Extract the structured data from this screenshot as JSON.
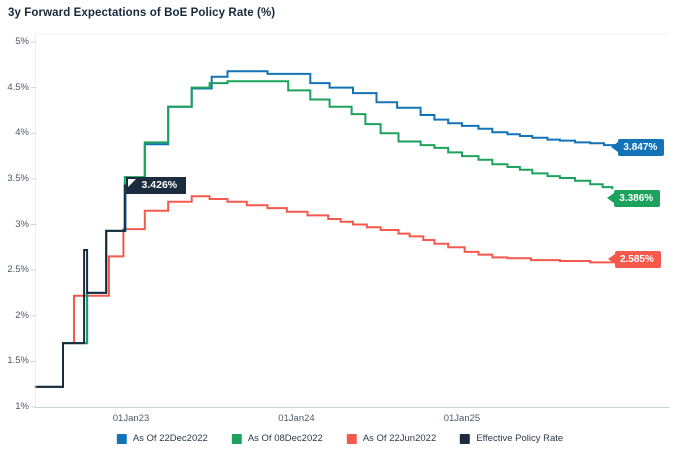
{
  "title": "3y Forward Expectations of BoE Policy Rate (%)",
  "colors": {
    "background": "#ffffff",
    "axis_line": "#c6d3df",
    "axis_line_light": "#e9eef4",
    "top_border": "#eef2f6",
    "axis_text": "#4c5866",
    "title_text": "#17293a"
  },
  "chart_data": {
    "type": "line",
    "step": "after",
    "grid": "off",
    "legend_position": "bottom",
    "axes": {
      "y": {
        "min": 1,
        "max": 5,
        "tick_step": 0.5,
        "ticks": [
          {
            "v": 5,
            "label": "5%"
          },
          {
            "v": 4.5,
            "label": "4.5%"
          },
          {
            "v": 4,
            "label": "4%"
          },
          {
            "v": 3.5,
            "label": "3.5%"
          },
          {
            "v": 3,
            "label": "3%"
          },
          {
            "v": 2.5,
            "label": "2.5%"
          },
          {
            "v": 2,
            "label": "2%"
          },
          {
            "v": 1.5,
            "label": "1.5%"
          },
          {
            "v": 1,
            "label": "1%"
          }
        ]
      },
      "x": {
        "unit": "months relative to 01Jan23",
        "range": [
          -7,
          36
        ],
        "ticks": [
          {
            "m": 0,
            "label": "01Jan23"
          },
          {
            "m": 12,
            "label": "01Jan24"
          },
          {
            "m": 24,
            "label": "01Jan25"
          }
        ]
      }
    },
    "series": [
      {
        "name": "As Of 22Dec2022",
        "color": "#1373b7",
        "end_label": "3.847%",
        "label_style": "tag",
        "points": [
          [
            -6.9,
            1.22
          ],
          [
            -4.93,
            1.7
          ],
          [
            -3.18,
            2.25
          ],
          [
            -1.8,
            2.93
          ],
          [
            -0.4,
            3.43
          ],
          [
            1.0,
            3.88
          ],
          [
            2.7,
            4.29
          ],
          [
            4.4,
            4.49
          ],
          [
            5.85,
            4.62
          ],
          [
            7.0,
            4.68
          ],
          [
            9.9,
            4.65
          ],
          [
            13.0,
            4.55
          ],
          [
            14.4,
            4.5
          ],
          [
            16.1,
            4.44
          ],
          [
            17.8,
            4.34
          ],
          [
            19.3,
            4.28
          ],
          [
            21.0,
            4.2
          ],
          [
            22.0,
            4.15
          ],
          [
            23.0,
            4.11
          ],
          [
            24.0,
            4.08
          ],
          [
            25.2,
            4.05
          ],
          [
            26.2,
            4.01
          ],
          [
            27.3,
            3.99
          ],
          [
            28.2,
            3.97
          ],
          [
            29.1,
            3.95
          ],
          [
            30.2,
            3.93
          ],
          [
            31.1,
            3.92
          ],
          [
            32.2,
            3.9
          ],
          [
            33.3,
            3.89
          ],
          [
            34.3,
            3.87
          ],
          [
            35.2,
            3.847
          ]
        ]
      },
      {
        "name": "As Of 08Dec2022",
        "color": "#1ca25d",
        "end_label": "3.386%",
        "label_style": "tag",
        "points": [
          [
            -6.9,
            1.22
          ],
          [
            -4.93,
            1.7
          ],
          [
            -3.18,
            2.25
          ],
          [
            -1.8,
            2.93
          ],
          [
            -0.45,
            3.52
          ],
          [
            1.0,
            3.9
          ],
          [
            2.7,
            4.29
          ],
          [
            4.4,
            4.5
          ],
          [
            5.7,
            4.55
          ],
          [
            7.0,
            4.57
          ],
          [
            11.4,
            4.47
          ],
          [
            13.0,
            4.37
          ],
          [
            14.4,
            4.29
          ],
          [
            16.0,
            4.21
          ],
          [
            17.0,
            4.1
          ],
          [
            18.1,
            4.0
          ],
          [
            19.4,
            3.91
          ],
          [
            21.0,
            3.87
          ],
          [
            22.0,
            3.84
          ],
          [
            23.0,
            3.79
          ],
          [
            24.0,
            3.75
          ],
          [
            25.2,
            3.71
          ],
          [
            26.2,
            3.66
          ],
          [
            27.3,
            3.63
          ],
          [
            28.2,
            3.6
          ],
          [
            29.1,
            3.56
          ],
          [
            30.2,
            3.53
          ],
          [
            31.1,
            3.51
          ],
          [
            32.2,
            3.48
          ],
          [
            33.3,
            3.44
          ],
          [
            34.2,
            3.41
          ],
          [
            34.9,
            3.386
          ]
        ]
      },
      {
        "name": "As Of 22Jun2022",
        "color": "#f4594c",
        "end_label": "2.585%",
        "label_style": "tag",
        "points": [
          [
            -6.98,
            1.22
          ],
          [
            -4.93,
            1.7
          ],
          [
            -4.13,
            2.22
          ],
          [
            -1.6,
            2.65
          ],
          [
            -0.55,
            2.95
          ],
          [
            1.0,
            3.15
          ],
          [
            2.7,
            3.25
          ],
          [
            4.4,
            3.31
          ],
          [
            5.7,
            3.28
          ],
          [
            7.0,
            3.25
          ],
          [
            8.4,
            3.21
          ],
          [
            9.9,
            3.18
          ],
          [
            11.3,
            3.14
          ],
          [
            12.8,
            3.1
          ],
          [
            14.3,
            3.06
          ],
          [
            15.2,
            3.03
          ],
          [
            16.1,
            3.0
          ],
          [
            17.1,
            2.97
          ],
          [
            18.1,
            2.94
          ],
          [
            19.4,
            2.9
          ],
          [
            20.2,
            2.87
          ],
          [
            21.2,
            2.83
          ],
          [
            22.0,
            2.79
          ],
          [
            23.0,
            2.75
          ],
          [
            24.2,
            2.7
          ],
          [
            25.2,
            2.67
          ],
          [
            26.2,
            2.64
          ],
          [
            27.3,
            2.63
          ],
          [
            29.0,
            2.61
          ],
          [
            31.1,
            2.6
          ],
          [
            33.3,
            2.585
          ],
          [
            34.95,
            2.585
          ]
        ]
      },
      {
        "name": "Effective Policy Rate",
        "color": "#1b2c3f",
        "end_label": "3.426%",
        "label_style": "callout",
        "points": [
          [
            -6.85,
            1.22
          ],
          [
            -4.93,
            1.7
          ],
          [
            -3.4,
            2.72
          ],
          [
            -3.18,
            2.25
          ],
          [
            -1.8,
            2.93
          ],
          [
            -0.45,
            3.426
          ],
          [
            -0.18,
            3.426
          ]
        ]
      }
    ]
  },
  "legend": {
    "items": [
      {
        "label": "As Of 22Dec2022",
        "color": "#1373b7"
      },
      {
        "label": "As Of 08Dec2022",
        "color": "#1ca25d"
      },
      {
        "label": "As Of 22Jun2022",
        "color": "#f4594c"
      },
      {
        "label": "Effective Policy Rate",
        "color": "#1b2c3f"
      }
    ]
  }
}
